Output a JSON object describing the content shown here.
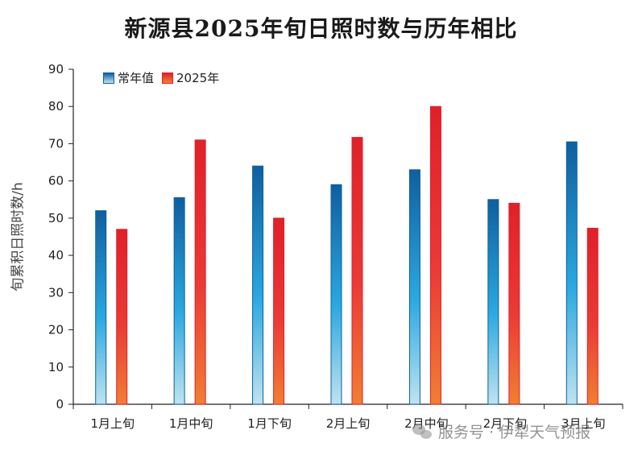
{
  "chart_data": {
    "type": "bar",
    "title": "新源县2025年旬日照时数与历年相比",
    "xlabel": "",
    "ylabel": "旬累积日照时数/h",
    "ylim": [
      0,
      90
    ],
    "yticks": [
      0,
      10,
      20,
      30,
      40,
      50,
      60,
      70,
      80,
      90
    ],
    "categories": [
      "1月上旬",
      "1月中旬",
      "1月下旬",
      "2月上旬",
      "2月中旬",
      "2月下旬",
      "3月上旬"
    ],
    "series": [
      {
        "name": "常年值",
        "values": [
          52,
          55.5,
          64,
          59,
          63,
          55,
          70.5
        ]
      },
      {
        "name": "2025年",
        "values": [
          47,
          71,
          50,
          71.7,
          80,
          54,
          47.3
        ]
      }
    ],
    "legend_position": "top-left",
    "grid": false
  },
  "colors": {
    "normal_top": "#0f5f9e",
    "normal_mid": "#2aa8e0",
    "normal_bottom": "#bfe3ef",
    "y2025_top": "#e0202a",
    "y2025_mid": "#ea3a36",
    "y2025_bottom": "#f07f33"
  },
  "watermark": {
    "text": "服务号 · 伊犁天气预报",
    "icon": "wechat-icon"
  }
}
